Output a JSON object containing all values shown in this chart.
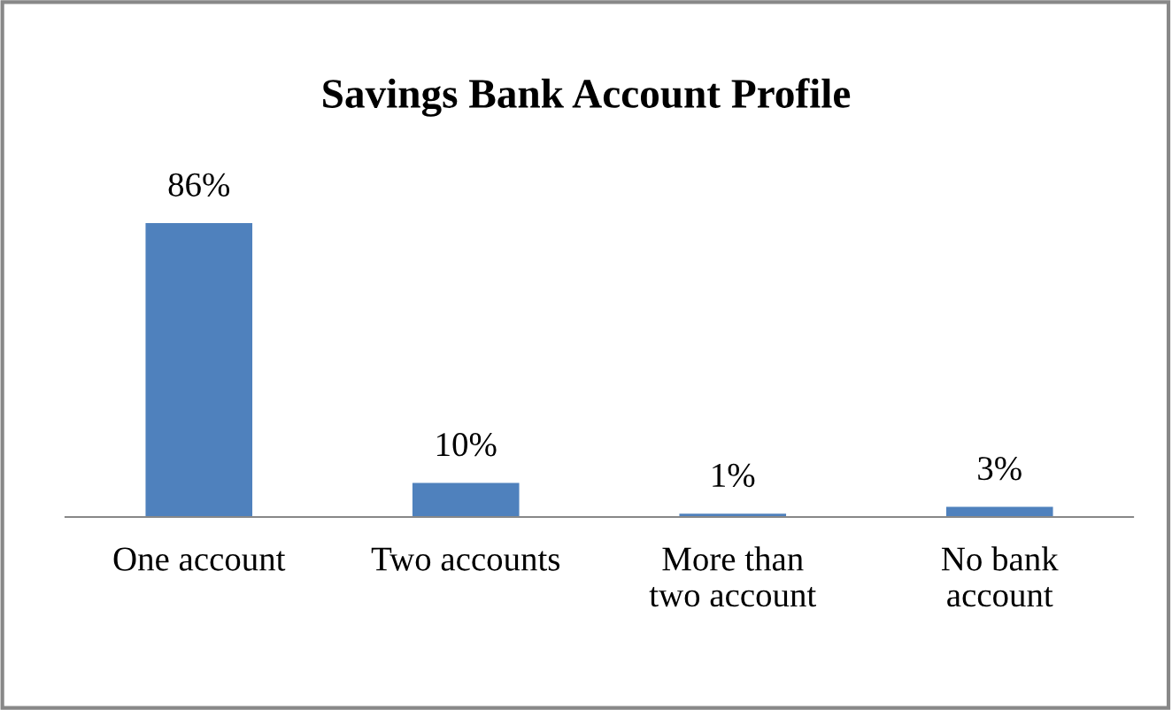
{
  "chart_data": {
    "type": "bar",
    "title": "Savings Bank Account Profile",
    "categories": [
      "One account",
      "Two accounts",
      "More than two account",
      "No bank account"
    ],
    "values": [
      86,
      10,
      1,
      3
    ],
    "color": "#4f81bd",
    "value_labels": [
      "86%",
      "10%",
      "1%",
      "3%"
    ],
    "grid": false,
    "legend": false
  }
}
